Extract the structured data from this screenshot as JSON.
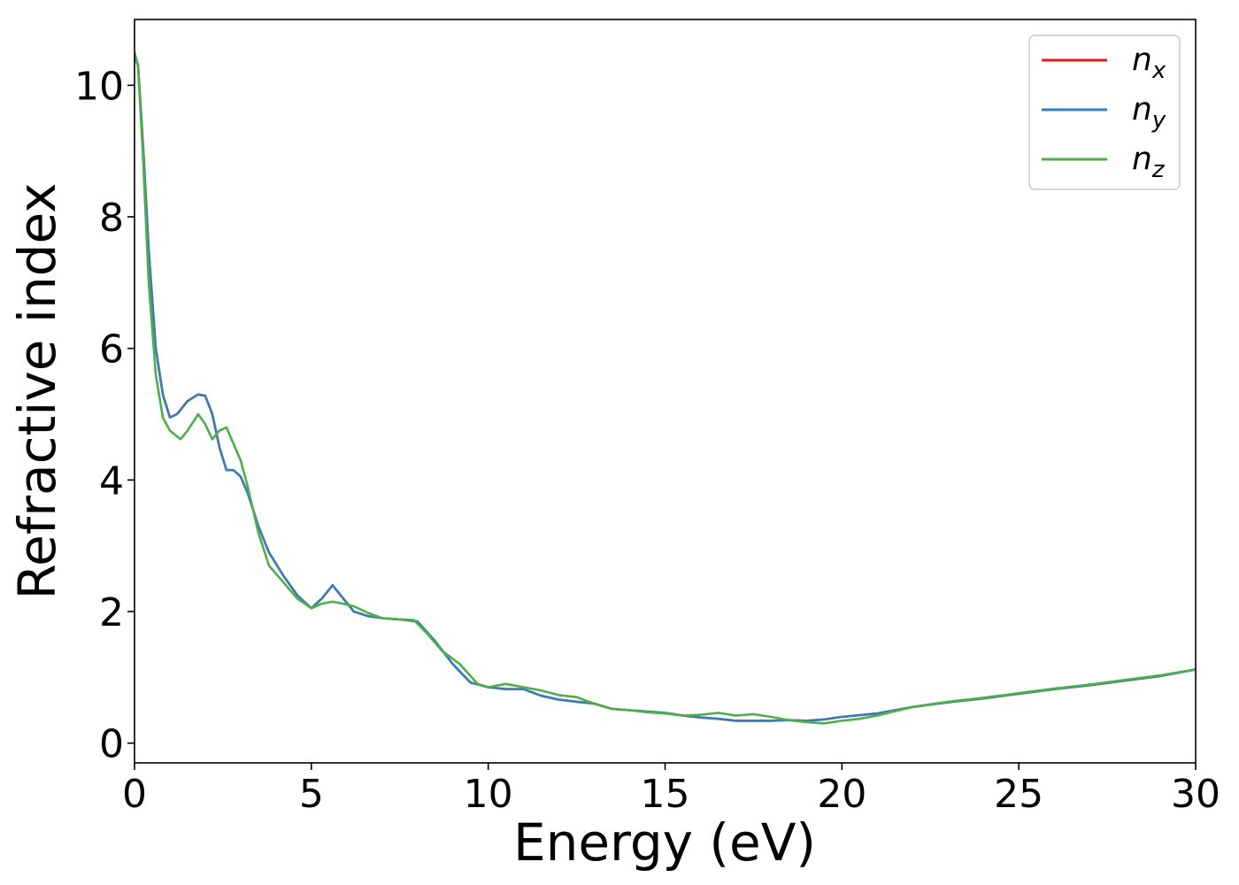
{
  "chart_data": {
    "type": "line",
    "title": "",
    "xlabel": "Energy (eV)",
    "ylabel": "Refractive index",
    "xlim": [
      0,
      30
    ],
    "ylim": [
      -0.3,
      11
    ],
    "xticks": [
      0,
      5,
      10,
      15,
      20,
      25,
      30
    ],
    "yticks": [
      0,
      2,
      4,
      6,
      8,
      10
    ],
    "grid": false,
    "legend_position": "top-right",
    "series": [
      {
        "name": "n_x",
        "label_base": "n",
        "label_sub": "x",
        "color": "#e41a1c",
        "x": [
          0,
          0.1,
          0.25,
          0.4,
          0.6,
          0.8,
          1.0,
          1.2,
          1.5,
          1.8,
          2.0,
          2.2,
          2.4,
          2.6,
          2.8,
          3.0,
          3.2,
          3.5,
          3.8,
          4.2,
          4.6,
          5.0,
          5.3,
          5.6,
          5.9,
          6.2,
          6.6,
          7.0,
          7.5,
          8.0,
          8.5,
          9.0,
          9.5,
          10.0,
          10.5,
          11.0,
          11.5,
          12.0,
          12.5,
          13.0,
          13.5,
          14.0,
          14.5,
          15.0,
          15.5,
          16.0,
          16.5,
          17.0,
          17.5,
          18.0,
          18.5,
          19.0,
          19.5,
          20.0,
          21.0,
          22.0,
          23.0,
          24.0,
          25.0,
          26.0,
          27.0,
          28.0,
          29.0,
          30.0
        ],
        "y": [
          10.45,
          10.3,
          9.0,
          7.5,
          6.0,
          5.3,
          4.95,
          5.0,
          5.2,
          5.3,
          5.28,
          5.0,
          4.5,
          4.15,
          4.15,
          4.05,
          3.8,
          3.3,
          2.9,
          2.55,
          2.25,
          2.05,
          2.2,
          2.4,
          2.2,
          2.0,
          1.93,
          1.9,
          1.88,
          1.85,
          1.55,
          1.2,
          0.92,
          0.85,
          0.82,
          0.82,
          0.72,
          0.66,
          0.63,
          0.6,
          0.52,
          0.5,
          0.48,
          0.46,
          0.42,
          0.39,
          0.37,
          0.34,
          0.34,
          0.34,
          0.35,
          0.34,
          0.36,
          0.4,
          0.45,
          0.55,
          0.62,
          0.68,
          0.75,
          0.82,
          0.88,
          0.95,
          1.02,
          1.12
        ]
      },
      {
        "name": "n_y",
        "label_base": "n",
        "label_sub": "y",
        "color": "#377eb8",
        "x": [
          0,
          0.1,
          0.25,
          0.4,
          0.6,
          0.8,
          1.0,
          1.2,
          1.5,
          1.8,
          2.0,
          2.2,
          2.4,
          2.6,
          2.8,
          3.0,
          3.2,
          3.5,
          3.8,
          4.2,
          4.6,
          5.0,
          5.3,
          5.6,
          5.9,
          6.2,
          6.6,
          7.0,
          7.5,
          8.0,
          8.5,
          9.0,
          9.5,
          10.0,
          10.5,
          11.0,
          11.5,
          12.0,
          12.5,
          13.0,
          13.5,
          14.0,
          14.5,
          15.0,
          15.5,
          16.0,
          16.5,
          17.0,
          17.5,
          18.0,
          18.5,
          19.0,
          19.5,
          20.0,
          21.0,
          22.0,
          23.0,
          24.0,
          25.0,
          26.0,
          27.0,
          28.0,
          29.0,
          30.0
        ],
        "y": [
          10.45,
          10.3,
          9.0,
          7.5,
          6.0,
          5.3,
          4.95,
          5.0,
          5.2,
          5.3,
          5.28,
          5.0,
          4.5,
          4.15,
          4.15,
          4.05,
          3.8,
          3.3,
          2.9,
          2.55,
          2.25,
          2.05,
          2.2,
          2.4,
          2.2,
          2.0,
          1.93,
          1.9,
          1.88,
          1.85,
          1.55,
          1.2,
          0.92,
          0.85,
          0.82,
          0.82,
          0.72,
          0.66,
          0.63,
          0.6,
          0.52,
          0.5,
          0.48,
          0.46,
          0.42,
          0.39,
          0.37,
          0.34,
          0.34,
          0.34,
          0.35,
          0.34,
          0.36,
          0.4,
          0.45,
          0.55,
          0.62,
          0.68,
          0.75,
          0.82,
          0.88,
          0.95,
          1.02,
          1.12
        ]
      },
      {
        "name": "n_z",
        "label_base": "n",
        "label_sub": "z",
        "color": "#4daf4a",
        "x": [
          0,
          0.1,
          0.25,
          0.4,
          0.6,
          0.8,
          1.0,
          1.3,
          1.5,
          1.8,
          2.0,
          2.2,
          2.4,
          2.6,
          2.8,
          3.0,
          3.2,
          3.5,
          3.8,
          4.2,
          4.6,
          5.0,
          5.3,
          5.6,
          5.9,
          6.2,
          6.6,
          7.0,
          7.5,
          7.9,
          8.3,
          8.7,
          9.2,
          9.7,
          10.0,
          10.5,
          11.0,
          11.5,
          12.0,
          12.5,
          13.0,
          13.5,
          14.0,
          14.5,
          15.0,
          15.5,
          16.0,
          16.5,
          17.0,
          17.5,
          18.0,
          18.5,
          19.0,
          19.5,
          20.0,
          20.5,
          21.0,
          22.0,
          23.0,
          24.0,
          25.0,
          26.0,
          27.0,
          28.0,
          29.0,
          30.0
        ],
        "y": [
          10.5,
          10.3,
          8.8,
          7.0,
          5.6,
          4.95,
          4.75,
          4.62,
          4.75,
          5.0,
          4.85,
          4.62,
          4.75,
          4.8,
          4.55,
          4.3,
          3.9,
          3.2,
          2.7,
          2.45,
          2.2,
          2.05,
          2.12,
          2.15,
          2.12,
          2.08,
          1.98,
          1.9,
          1.88,
          1.87,
          1.65,
          1.4,
          1.2,
          0.9,
          0.85,
          0.9,
          0.85,
          0.8,
          0.73,
          0.7,
          0.6,
          0.52,
          0.5,
          0.47,
          0.45,
          0.42,
          0.43,
          0.46,
          0.42,
          0.44,
          0.4,
          0.35,
          0.32,
          0.3,
          0.34,
          0.37,
          0.42,
          0.55,
          0.63,
          0.69,
          0.76,
          0.83,
          0.89,
          0.96,
          1.03,
          1.12
        ]
      }
    ]
  }
}
